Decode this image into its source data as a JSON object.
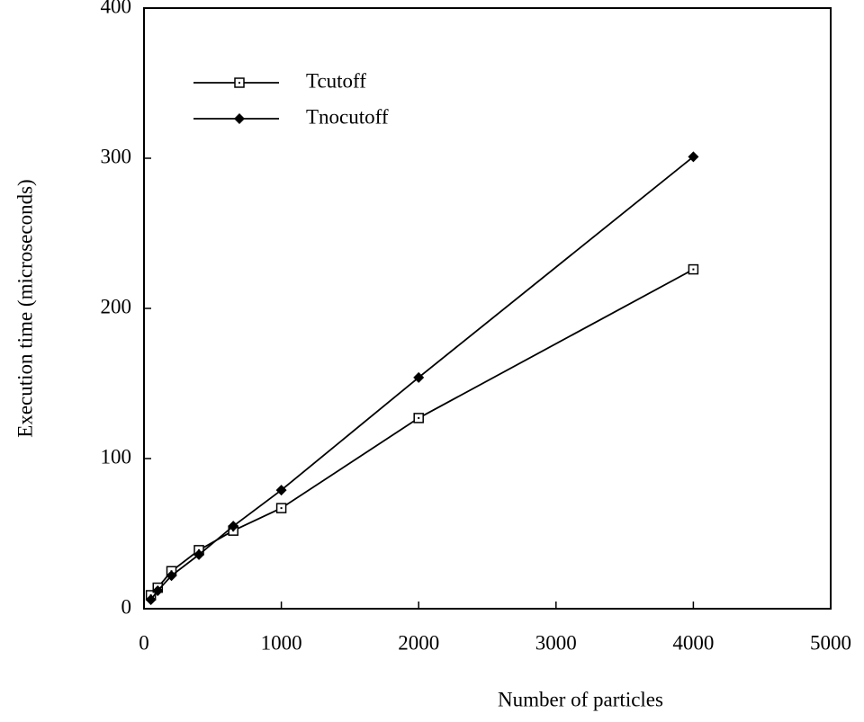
{
  "chart_data": {
    "type": "line",
    "x_label": "Number of particles",
    "y_label": "Execution time (microseconds)",
    "x": [
      50,
      100,
      200,
      400,
      650,
      1000,
      2000,
      4000
    ],
    "series": [
      {
        "name": "Tcutoff",
        "color": "#000000",
        "marker": "square",
        "values": [
          9,
          14,
          25,
          39,
          52,
          67,
          127,
          226
        ]
      },
      {
        "name": "Tnocutoff",
        "color": "#000000",
        "marker": "diamond",
        "values": [
          6,
          12,
          22,
          36,
          55,
          79,
          154,
          301
        ]
      }
    ],
    "xlim": [
      0,
      5000
    ],
    "xticks": [
      0,
      1000,
      2000,
      3000,
      4000,
      5000
    ],
    "ylim": [
      0,
      400
    ],
    "yticks": [
      0,
      100,
      200,
      300,
      400
    ],
    "legend": "upper-left",
    "grid": false
  }
}
